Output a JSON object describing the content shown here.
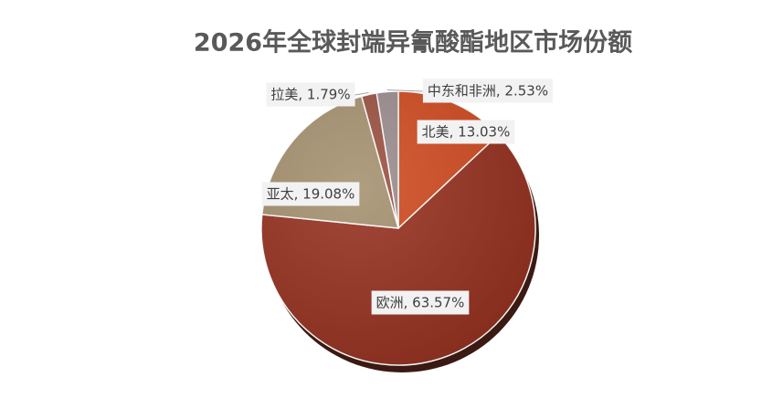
{
  "chart_data": {
    "type": "pie",
    "title": "2026年全球封端异氰酸酯地区市场份额",
    "categories": [
      "北美",
      "欧洲",
      "亚太",
      "拉美",
      "中东和非洲"
    ],
    "values": [
      13.03,
      63.57,
      19.08,
      1.79,
      2.53
    ],
    "value_labels": [
      "北美, 13.03%",
      "欧洲, 63.57%",
      "亚太, 19.08%",
      "拉美, 1.79%",
      "中东和非洲, 2.53%"
    ],
    "colors": [
      "#d04a1e",
      "#96301f",
      "#a5906e",
      "#9a5040",
      "#9a8c8e"
    ]
  }
}
